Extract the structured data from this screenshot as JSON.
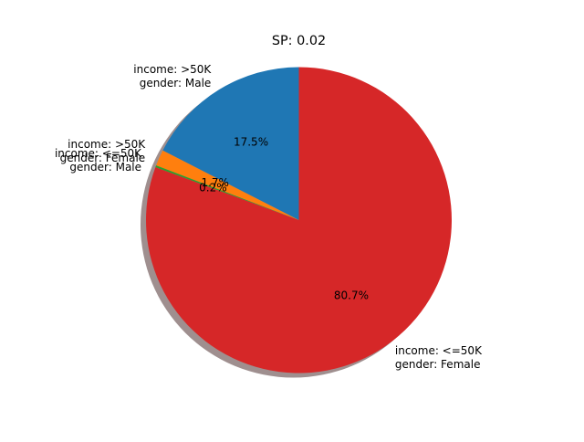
{
  "chart_data": {
    "type": "pie",
    "title": "SP: 0.02",
    "start_angle_deg": 90,
    "direction": "counterclockwise",
    "shadow": true,
    "slices": [
      {
        "label_lines": [
          "income: >50K",
          "gender: Male"
        ],
        "value": 17.5,
        "pct_label": "17.5%",
        "color": "#1f77b4"
      },
      {
        "label_lines": [
          "income: >50K",
          "gender: Female"
        ],
        "value": 1.7,
        "pct_label": "1.7%",
        "color": "#ff7f0e"
      },
      {
        "label_lines": [
          "income: <=50K",
          "gender: Male"
        ],
        "value": 0.2,
        "pct_label": "0.2%",
        "color": "#2ca02c"
      },
      {
        "label_lines": [
          "income: <=50K",
          "gender: Female"
        ],
        "value": 80.7,
        "pct_label": "80.7%",
        "color": "#d62728"
      }
    ]
  }
}
